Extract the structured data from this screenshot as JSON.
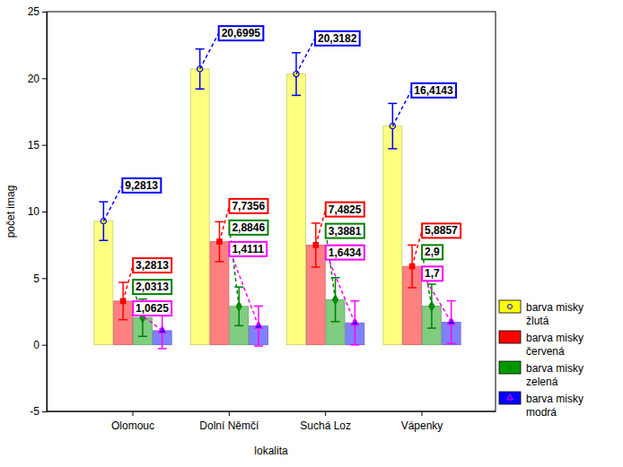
{
  "chart_data": {
    "type": "bar",
    "xlabel": "lokalita",
    "ylabel": "počet imag",
    "categories": [
      "Olomouc",
      "Dolní Němčí",
      "Suchá Loz",
      "Vápenky"
    ],
    "ylim": [
      -5,
      25
    ],
    "yticks": [
      -5,
      0,
      5,
      10,
      15,
      20,
      25
    ],
    "grid": false,
    "legend": "right",
    "data_labels": true,
    "series": [
      {
        "name": "barva misky žlutá",
        "color": "#ffff00",
        "marker": "circle",
        "values": [
          9.2813,
          20.6995,
          20.3182,
          16.4143
        ],
        "value_labels": [
          "9,2813",
          "20,6995",
          "20,3182",
          "16,4143"
        ],
        "errors": [
          1.45,
          1.5,
          1.6,
          1.7
        ]
      },
      {
        "name": "barva misky červená",
        "color": "#ff0000",
        "marker": "square",
        "values": [
          3.2813,
          7.7356,
          7.4825,
          5.8857
        ],
        "value_labels": [
          "3,2813",
          "7,7356",
          "7,4825",
          "5,8857"
        ],
        "errors": [
          1.4,
          1.5,
          1.65,
          1.6
        ]
      },
      {
        "name": "barva misky zelená",
        "color": "#009900",
        "marker": "diamond",
        "values": [
          2.0313,
          2.8846,
          3.3881,
          2.9
        ],
        "value_labels": [
          "2,0313",
          "2,8846",
          "3,3881",
          "2,9"
        ],
        "errors": [
          1.4,
          1.45,
          1.65,
          1.65
        ]
      },
      {
        "name": "barva misky modrá",
        "color": "#0000ff",
        "marker": "triangle",
        "values": [
          1.0625,
          1.4111,
          1.6434,
          1.7
        ],
        "value_labels": [
          "1,0625",
          "1,4111",
          "1,6434",
          "1,7"
        ],
        "errors": [
          1.35,
          1.5,
          1.65,
          1.6
        ]
      }
    ]
  }
}
